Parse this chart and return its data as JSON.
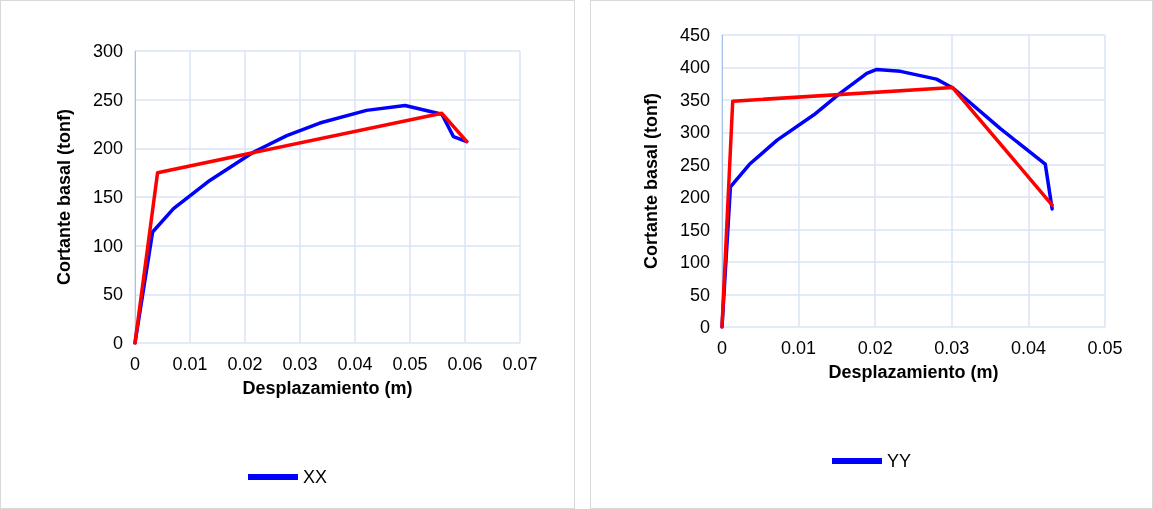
{
  "chart_data": [
    {
      "type": "line",
      "xlabel": "Desplazamiento (m)",
      "ylabel": "Cortante basal (tonf)",
      "xlim": [
        0,
        0.07
      ],
      "xticks": [
        0,
        0.01,
        0.02,
        0.03,
        0.04,
        0.05,
        0.06,
        0.07
      ],
      "ylim": [
        0,
        300
      ],
      "yticks": [
        0,
        50,
        100,
        150,
        200,
        250,
        300
      ],
      "grid": true,
      "legend": "bottom",
      "marker": "none",
      "line_style": "solid",
      "series": [
        {
          "name": "XX",
          "color": "#0000ff",
          "x": [
            0,
            0.0032,
            0.007,
            0.0136,
            0.0215,
            0.0276,
            0.0336,
            0.0421,
            0.0491,
            0.0558,
            0.0579,
            0.0603
          ],
          "values": [
            0,
            114,
            138,
            167,
            196,
            213,
            226,
            239,
            244,
            235,
            212,
            207
          ]
        },
        {
          "color": "#ff0000",
          "x": [
            0,
            0.0041,
            0.0558,
            0.0603
          ],
          "values": [
            0,
            175,
            236,
            207
          ]
        }
      ]
    },
    {
      "type": "line",
      "xlabel": "Desplazamiento (m)",
      "ylabel": "Cortante basal (tonf)",
      "xlim": [
        0,
        0.05
      ],
      "xticks": [
        0,
        0.01,
        0.02,
        0.03,
        0.04,
        0.05
      ],
      "ylim": [
        0,
        450
      ],
      "yticks": [
        0,
        50,
        100,
        150,
        200,
        250,
        300,
        350,
        400,
        450
      ],
      "grid": true,
      "legend": "bottom",
      "marker": "none",
      "line_style": "solid",
      "series": [
        {
          "name": "YY",
          "color": "#0000ff",
          "x": [
            0,
            0.0011,
            0.0037,
            0.0072,
            0.012,
            0.0154,
            0.0189,
            0.0202,
            0.0233,
            0.028,
            0.0302,
            0.0363,
            0.0422,
            0.0431
          ],
          "values": [
            0,
            216,
            252,
            288,
            327,
            360,
            391,
            397,
            394,
            382,
            368,
            306,
            251,
            182
          ]
        },
        {
          "color": "#ff0000",
          "x": [
            0,
            0.0014,
            0.0301,
            0.0431
          ],
          "values": [
            0,
            348,
            369,
            188
          ]
        }
      ]
    }
  ]
}
